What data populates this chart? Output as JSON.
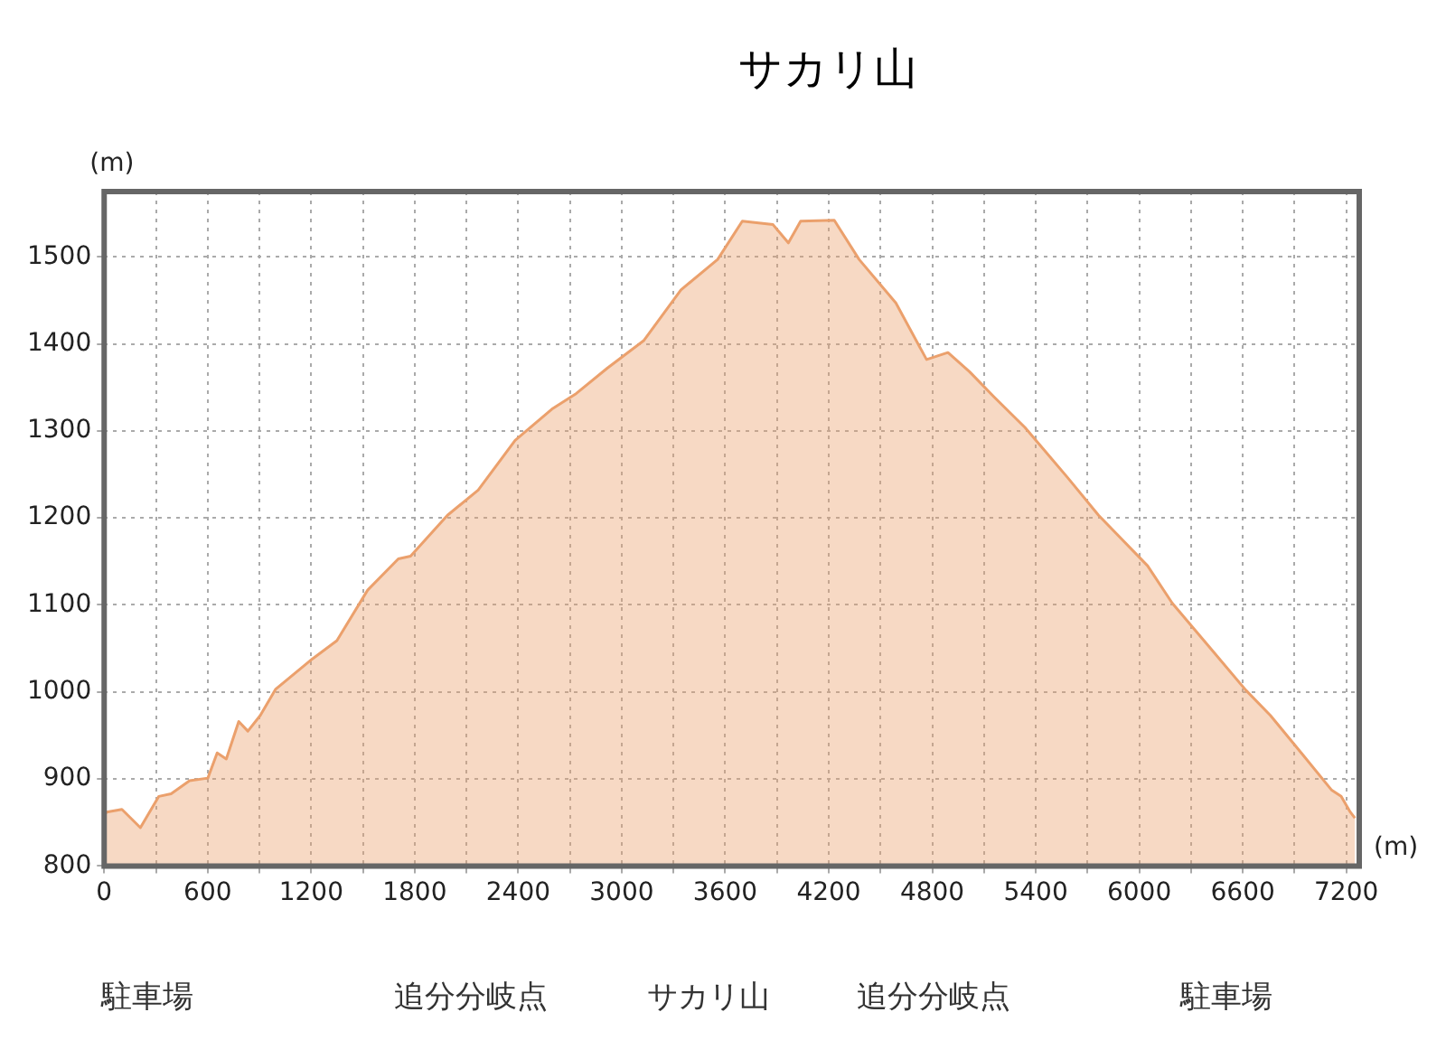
{
  "chart_data": {
    "type": "area",
    "title": "サカリ山",
    "xlabel": "(m)",
    "ylabel": "(m)",
    "x": [
      0,
      14,
      103,
      210,
      317,
      388,
      495,
      601,
      655,
      708,
      780,
      833,
      905,
      993,
      1207,
      1349,
      1527,
      1705,
      1776,
      1990,
      2168,
      2382,
      2595,
      2737,
      2916,
      3129,
      3343,
      3556,
      3699,
      3877,
      3966,
      4037,
      4232,
      4376,
      4589,
      4767,
      4891,
      5016,
      5158,
      5337,
      5586,
      5764,
      6048,
      6191,
      6405,
      6618,
      6760,
      6939,
      7116,
      7170,
      7223,
      7250
    ],
    "series": [
      {
        "color": "#eba06c",
        "values": [
          858,
          862,
          865,
          844,
          880,
          883,
          898,
          901,
          930,
          923,
          966,
          955,
          973,
          1003,
          1038,
          1059,
          1117,
          1153,
          1156,
          1203,
          1232,
          1289,
          1325,
          1343,
          1372,
          1404,
          1462,
          1497,
          1541,
          1537,
          1516,
          1541,
          1542,
          1497,
          1447,
          1382,
          1390,
          1368,
          1339,
          1304,
          1246,
          1203,
          1145,
          1102,
          1052,
          1002,
          973,
          930,
          887,
          880,
          862,
          855
        ]
      }
    ],
    "xlim": [
      0,
      7275
    ],
    "ylim": [
      800,
      1575
    ],
    "xticks": [
      0,
      {
        "value": 300,
        "label": null
      },
      600,
      {
        "value": 900,
        "label": null
      },
      1200,
      {
        "value": 1500,
        "label": null
      },
      1800,
      {
        "value": 2100,
        "label": null
      },
      2400,
      {
        "value": 2700,
        "label": null
      },
      3000,
      {
        "value": 3300,
        "label": null
      },
      3600,
      {
        "value": 3900,
        "label": null
      },
      4200,
      {
        "value": 4500,
        "label": null
      },
      4800,
      {
        "value": 5100,
        "label": null
      },
      5400,
      {
        "value": 5700,
        "label": null
      },
      6000,
      {
        "value": 6300,
        "label": null
      },
      6600,
      {
        "value": 6900,
        "label": null
      },
      7200
    ],
    "yticks": [
      800,
      900,
      1000,
      1100,
      1200,
      1300,
      1400,
      1500
    ],
    "grid": true,
    "legend": false,
    "marker": "none",
    "annotations": [
      "駐車場",
      "追分分岐点",
      "サカリ山",
      "追分分岐点",
      "駐車場"
    ]
  }
}
